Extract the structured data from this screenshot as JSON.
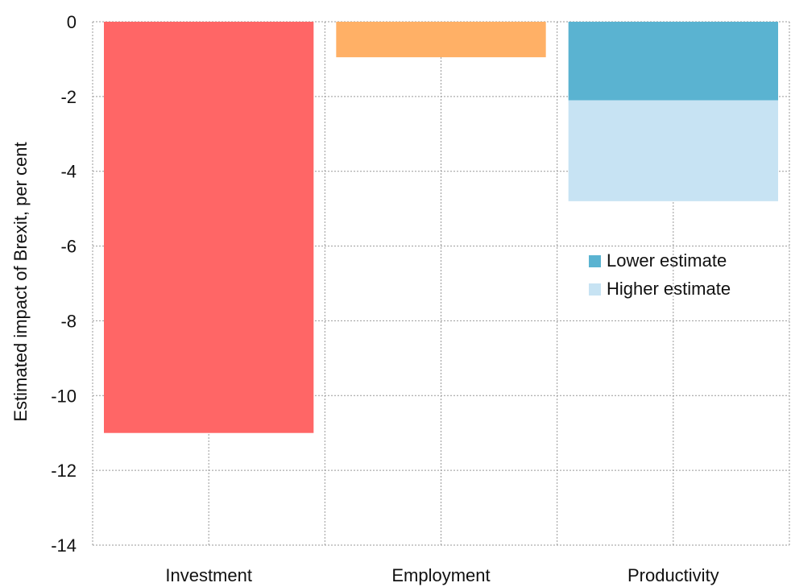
{
  "chart_data": {
    "type": "bar",
    "title": "",
    "xlabel": "",
    "ylabel": "Estimated impact of Brexit, per cent",
    "ylim": [
      -14,
      0
    ],
    "yticks": [
      0,
      -2,
      -4,
      -6,
      -8,
      -10,
      -12,
      -14
    ],
    "categories": [
      "Investment",
      "Employment",
      "Productivity"
    ],
    "bars": [
      {
        "category": "Investment",
        "value": -11.0,
        "color": "#ff6666"
      },
      {
        "category": "Employment",
        "value": -0.95,
        "color": "#ffb066"
      }
    ],
    "stacked": {
      "category": "Productivity",
      "series": [
        {
          "name": "Lower estimate",
          "from": 0,
          "to": -2.1,
          "color": "#5ab3d1"
        },
        {
          "name": "Higher estimate",
          "from": -2.1,
          "to": -4.8,
          "color": "#c7e3f3"
        }
      ]
    },
    "legend": {
      "position": "middle-right",
      "entries": [
        {
          "name": "Lower estimate",
          "color": "#5ab3d1"
        },
        {
          "name": "Higher estimate",
          "color": "#c7e3f3"
        }
      ]
    },
    "grid": true
  }
}
